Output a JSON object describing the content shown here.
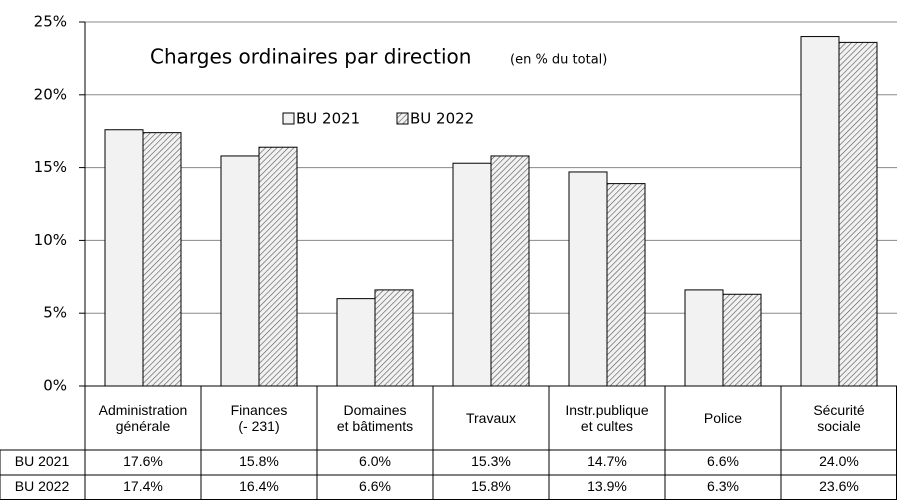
{
  "chart_data": {
    "type": "bar",
    "title": "Charges ordinaires par direction",
    "subtitle": "(en % du total)",
    "categories": [
      "Administration\ngénérale",
      "Finances\n(- 231)",
      "Domaines\net bâtiments",
      "Travaux",
      "Instr.publique\net cultes",
      "Police",
      "Sécurité\nsociale"
    ],
    "series": [
      {
        "name": "BU 2021",
        "color": "#f2f2f2",
        "values": [
          17.6,
          15.8,
          6.0,
          15.3,
          14.7,
          6.6,
          24.0
        ],
        "value_labels": [
          "17.6%",
          "15.8%",
          "6.0%",
          "15.3%",
          "14.7%",
          "6.6%",
          "24.0%"
        ]
      },
      {
        "name": "BU 2022",
        "color": "#f2f2f2",
        "pattern": "hatch",
        "values": [
          17.4,
          16.4,
          6.6,
          15.8,
          13.9,
          6.3,
          23.6
        ],
        "value_labels": [
          "17.4%",
          "16.4%",
          "6.6%",
          "15.8%",
          "13.9%",
          "6.3%",
          "23.6%"
        ]
      }
    ],
    "ylim": [
      0,
      25
    ],
    "yticks": [
      {
        "value": 0,
        "label": "0%"
      },
      {
        "value": 5,
        "label": "5%"
      },
      {
        "value": 10,
        "label": "10%"
      },
      {
        "value": 15,
        "label": "15%"
      },
      {
        "value": 20,
        "label": "20%"
      },
      {
        "value": 25,
        "label": "25%"
      }
    ],
    "grid": true
  }
}
